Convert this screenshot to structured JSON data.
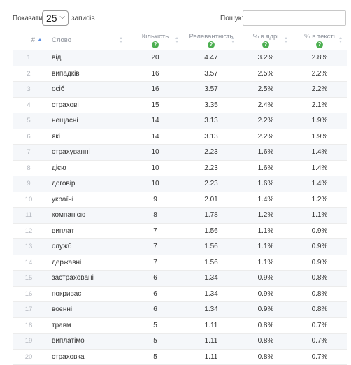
{
  "controls": {
    "length_label": "Показати",
    "length_value": "25",
    "length_suffix": "записів",
    "search_label": "Пошук:",
    "search_value": ""
  },
  "table": {
    "headers": {
      "num": "#",
      "word": "Слово",
      "qty": "Кількість",
      "relevance": "Релевантність",
      "pct_core": "% в ядрі",
      "pct_text": "% в тексті",
      "help_glyph": "?"
    },
    "rows": [
      {
        "n": "1",
        "word": "від",
        "qty": "20",
        "rel": "4.47",
        "core": "3.2%",
        "text": "2.8%"
      },
      {
        "n": "2",
        "word": "випадків",
        "qty": "16",
        "rel": "3.57",
        "core": "2.5%",
        "text": "2.2%"
      },
      {
        "n": "3",
        "word": "осіб",
        "qty": "16",
        "rel": "3.57",
        "core": "2.5%",
        "text": "2.2%"
      },
      {
        "n": "4",
        "word": "страхові",
        "qty": "15",
        "rel": "3.35",
        "core": "2.4%",
        "text": "2.1%"
      },
      {
        "n": "5",
        "word": "нещасні",
        "qty": "14",
        "rel": "3.13",
        "core": "2.2%",
        "text": "1.9%"
      },
      {
        "n": "6",
        "word": "які",
        "qty": "14",
        "rel": "3.13",
        "core": "2.2%",
        "text": "1.9%"
      },
      {
        "n": "7",
        "word": "страхуванні",
        "qty": "10",
        "rel": "2.23",
        "core": "1.6%",
        "text": "1.4%"
      },
      {
        "n": "8",
        "word": "дією",
        "qty": "10",
        "rel": "2.23",
        "core": "1.6%",
        "text": "1.4%"
      },
      {
        "n": "9",
        "word": "договір",
        "qty": "10",
        "rel": "2.23",
        "core": "1.6%",
        "text": "1.4%"
      },
      {
        "n": "10",
        "word": "україні",
        "qty": "9",
        "rel": "2.01",
        "core": "1.4%",
        "text": "1.2%"
      },
      {
        "n": "11",
        "word": "компанією",
        "qty": "8",
        "rel": "1.78",
        "core": "1.2%",
        "text": "1.1%"
      },
      {
        "n": "12",
        "word": "виплат",
        "qty": "7",
        "rel": "1.56",
        "core": "1.1%",
        "text": "0.9%"
      },
      {
        "n": "13",
        "word": "служб",
        "qty": "7",
        "rel": "1.56",
        "core": "1.1%",
        "text": "0.9%"
      },
      {
        "n": "14",
        "word": "державні",
        "qty": "7",
        "rel": "1.56",
        "core": "1.1%",
        "text": "0.9%"
      },
      {
        "n": "15",
        "word": "застраховані",
        "qty": "6",
        "rel": "1.34",
        "core": "0.9%",
        "text": "0.8%"
      },
      {
        "n": "16",
        "word": "покриває",
        "qty": "6",
        "rel": "1.34",
        "core": "0.9%",
        "text": "0.8%"
      },
      {
        "n": "17",
        "word": "воєнні",
        "qty": "6",
        "rel": "1.34",
        "core": "0.9%",
        "text": "0.8%"
      },
      {
        "n": "18",
        "word": "травм",
        "qty": "5",
        "rel": "1.11",
        "core": "0.8%",
        "text": "0.7%"
      },
      {
        "n": "19",
        "word": "виплатімо",
        "qty": "5",
        "rel": "1.11",
        "core": "0.8%",
        "text": "0.7%"
      },
      {
        "n": "20",
        "word": "страховка",
        "qty": "5",
        "rel": "1.11",
        "core": "0.8%",
        "text": "0.7%"
      }
    ]
  },
  "colors": {
    "help_badge": "#4caf50",
    "sort_active": "#5b8de0",
    "header_text": "#8a8f99",
    "stripe": "#f5f7fa"
  }
}
